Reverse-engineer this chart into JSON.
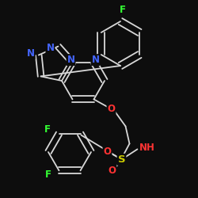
{
  "background": "#0d0d0d",
  "bond_color": "#d8d8d8",
  "atom_colors": {
    "N": "#4466ff",
    "O": "#ff3333",
    "S": "#cccc00",
    "F": "#33ff33",
    "NH": "#ff3333"
  },
  "bond_lw": 1.3,
  "font_size": 8.5,
  "font_size_small": 7.5
}
